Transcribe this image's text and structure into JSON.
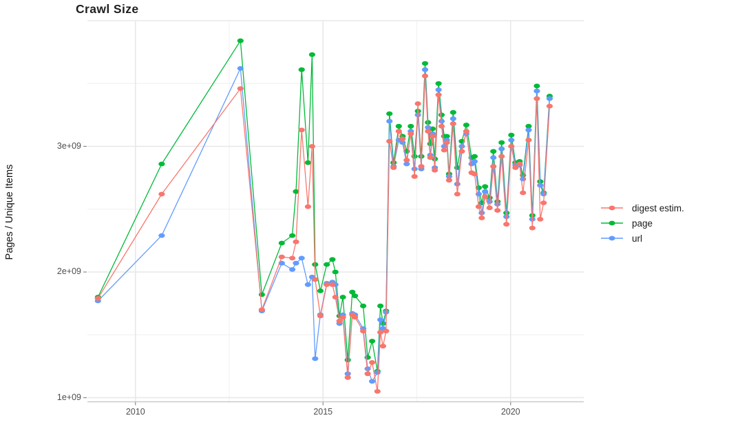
{
  "title": "Crawl Size",
  "axes": {
    "y": {
      "label": "Pages / Unique Items",
      "ticks": [
        {
          "label": "1e+09",
          "value": 1
        },
        {
          "label": "2e+09",
          "value": 2
        },
        {
          "label": "3e+09",
          "value": 3
        }
      ],
      "minor": [
        1.5,
        2.5,
        3.5
      ],
      "major_unlabeled": [
        4
      ]
    },
    "x": {
      "ticks": [
        {
          "label": "2010",
          "value": 2010
        },
        {
          "label": "2015",
          "value": 2015
        },
        {
          "label": "2020",
          "value": 2020
        }
      ],
      "minor": [
        2012.5,
        2017.5
      ]
    }
  },
  "legend": {
    "items": [
      {
        "label": "digest estim.",
        "color": "#F8766D"
      },
      {
        "label": "page",
        "color": "#00BA38"
      },
      {
        "label": "url",
        "color": "#619CFF"
      }
    ]
  },
  "colors": {
    "grid_major": "#E7E7E7",
    "grid_minor": "#F2F2F2",
    "axis_line": "#C9C9C9",
    "tick_mark": "#8A8A8A",
    "tick_text": "#4D4D4D",
    "background": "#FFFFFF"
  },
  "chart_data": {
    "type": "line",
    "title": "Crawl Size",
    "xlabel": "",
    "ylabel": "Pages / Unique Items",
    "y_unit": "billions (1e9) of pages / unique items",
    "xlim": [
      2008.72,
      2021.95
    ],
    "ylim": [
      0.97,
      4.0
    ],
    "grid": true,
    "legend_position": "right",
    "marker": "point",
    "x": [
      2009.0,
      2010.7,
      2012.8,
      2013.37,
      2013.9,
      2014.18,
      2014.28,
      2014.43,
      2014.6,
      2014.71,
      2014.79,
      2014.93,
      2015.1,
      2015.25,
      2015.33,
      2015.44,
      2015.53,
      2015.66,
      2015.78,
      2015.85,
      2016.07,
      2016.19,
      2016.31,
      2016.45,
      2016.53,
      2016.6,
      2016.68,
      2016.77,
      2016.88,
      2017.02,
      2017.12,
      2017.23,
      2017.34,
      2017.44,
      2017.53,
      2017.62,
      2017.72,
      2017.8,
      2017.86,
      2017.92,
      2017.98,
      2018.08,
      2018.16,
      2018.23,
      2018.3,
      2018.36,
      2018.47,
      2018.58,
      2018.7,
      2018.82,
      2018.96,
      2019.04,
      2019.15,
      2019.23,
      2019.32,
      2019.44,
      2019.54,
      2019.65,
      2019.76,
      2019.89,
      2020.02,
      2020.13,
      2020.24,
      2020.33,
      2020.48,
      2020.58,
      2020.7,
      2020.79,
      2020.88,
      2021.04
    ],
    "series": [
      {
        "name": "digest estim.",
        "color": "#F8766D",
        "values": [
          1.79,
          2.62,
          3.46,
          1.7,
          2.12,
          2.11,
          2.24,
          3.13,
          2.52,
          3.0,
          1.94,
          1.65,
          1.9,
          1.9,
          1.8,
          1.61,
          1.64,
          1.16,
          1.66,
          1.64,
          1.53,
          1.19,
          1.28,
          1.05,
          1.52,
          1.41,
          1.53,
          3.04,
          2.83,
          3.12,
          3.06,
          2.89,
          3.1,
          2.76,
          3.34,
          2.84,
          3.56,
          3.12,
          2.91,
          3.08,
          2.81,
          3.41,
          3.16,
          2.97,
          3.03,
          2.73,
          3.18,
          2.62,
          2.96,
          3.12,
          2.79,
          2.78,
          2.52,
          2.43,
          2.6,
          2.51,
          2.84,
          2.49,
          2.92,
          2.38,
          3.0,
          2.83,
          2.86,
          2.63,
          3.05,
          2.35,
          3.38,
          2.42,
          2.55,
          3.32
        ]
      },
      {
        "name": "page",
        "color": "#00BA38",
        "values": [
          1.8,
          2.86,
          3.84,
          1.82,
          2.23,
          2.29,
          2.64,
          3.61,
          2.87,
          3.73,
          2.06,
          1.85,
          2.06,
          2.1,
          2.0,
          1.65,
          1.8,
          1.3,
          1.84,
          1.81,
          1.73,
          1.32,
          1.45,
          1.21,
          1.73,
          1.59,
          1.69,
          3.26,
          2.87,
          3.16,
          3.08,
          2.96,
          3.16,
          2.92,
          3.28,
          2.92,
          3.66,
          3.19,
          3.02,
          3.14,
          2.9,
          3.5,
          3.25,
          3.08,
          3.08,
          2.78,
          3.27,
          2.83,
          3.04,
          3.17,
          2.91,
          2.92,
          2.67,
          2.55,
          2.68,
          2.59,
          2.96,
          2.56,
          3.03,
          2.47,
          3.09,
          2.87,
          2.88,
          2.77,
          3.16,
          2.45,
          3.48,
          2.72,
          2.63,
          3.4
        ]
      },
      {
        "name": "url",
        "color": "#619CFF",
        "values": [
          1.77,
          2.29,
          3.62,
          1.69,
          2.07,
          2.02,
          2.07,
          2.11,
          1.9,
          1.96,
          1.31,
          1.66,
          1.91,
          1.92,
          1.9,
          1.59,
          1.66,
          1.19,
          1.67,
          1.66,
          1.55,
          1.23,
          1.13,
          1.2,
          1.62,
          1.55,
          1.68,
          3.2,
          2.84,
          3.05,
          3.03,
          2.86,
          3.12,
          2.82,
          3.25,
          2.82,
          3.61,
          3.15,
          2.93,
          3.1,
          2.83,
          3.45,
          3.2,
          3.0,
          3.05,
          2.76,
          3.22,
          2.7,
          3.0,
          3.1,
          2.86,
          2.88,
          2.62,
          2.47,
          2.64,
          2.56,
          2.91,
          2.54,
          2.98,
          2.44,
          3.05,
          2.85,
          2.85,
          2.74,
          3.13,
          2.42,
          3.44,
          2.69,
          2.62,
          3.38
        ]
      }
    ]
  }
}
